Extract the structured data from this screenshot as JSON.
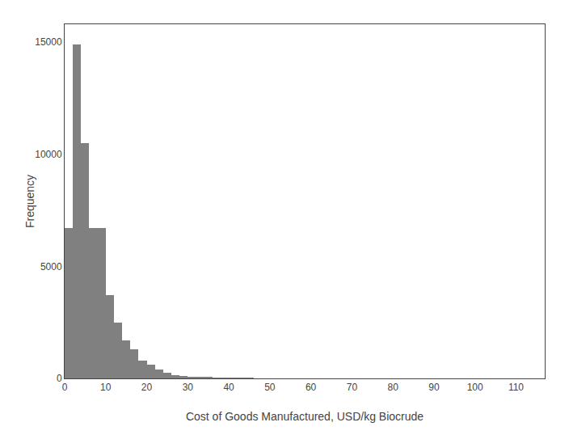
{
  "chart_data": {
    "type": "histogram",
    "xlabel": "Cost of Goods Manufactured, USD/kg Biocrude",
    "ylabel": "Frequency",
    "bins": [
      0,
      2,
      4,
      6,
      8,
      10,
      12,
      14,
      16,
      18,
      20,
      22,
      24,
      26,
      28,
      30,
      32,
      34,
      36,
      38,
      40,
      42,
      44,
      46,
      48,
      50,
      52,
      54,
      56,
      58,
      60,
      62,
      64,
      66,
      68,
      70,
      72,
      74,
      76,
      78,
      80,
      82,
      84,
      86,
      88,
      90,
      92,
      94,
      96,
      98,
      100,
      102,
      104,
      106,
      108
    ],
    "values": [
      6700,
      14900,
      10500,
      6700,
      6700,
      3700,
      2500,
      1700,
      1300,
      800,
      600,
      400,
      250,
      150,
      100,
      70,
      50,
      40,
      30,
      20,
      10,
      5,
      2,
      0,
      0,
      0,
      0,
      0,
      0,
      0,
      0,
      0,
      0,
      0,
      0,
      0,
      0,
      0,
      0,
      0,
      0,
      0,
      0,
      0,
      0,
      0,
      0,
      0,
      0,
      0,
      0,
      0,
      0,
      0
    ],
    "color": "#808080",
    "xlim": [
      0,
      117
    ],
    "ylim": [
      0,
      15800
    ],
    "xticks": [
      0,
      10,
      20,
      30,
      40,
      50,
      60,
      70,
      80,
      90,
      100,
      110
    ],
    "yticks": [
      0,
      5000,
      10000,
      15000
    ],
    "grid": false
  }
}
